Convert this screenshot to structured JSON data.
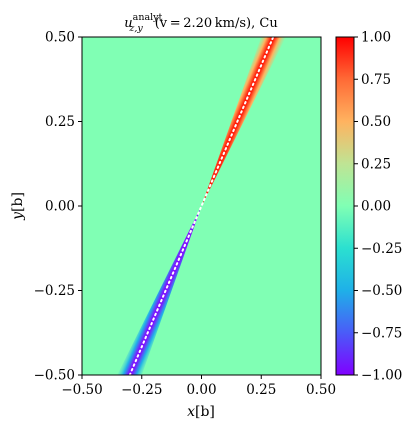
{
  "chart_data": {
    "type": "heatmap",
    "title_parts": {
      "main": "u",
      "subscript": "z,y",
      "superscript": "analyt",
      "rest": "(v = 2.20 km/s), Cu"
    },
    "xlabel_parts": {
      "var": "x",
      "unit": "[b]"
    },
    "ylabel_parts": {
      "var": "y",
      "unit": "[b]"
    },
    "xlim": [
      -0.5,
      0.5
    ],
    "ylim": [
      -0.5,
      0.5
    ],
    "x_ticks": [
      "−0.50",
      "−0.25",
      "0.00",
      "0.25",
      "0.50"
    ],
    "y_ticks": [
      "0.50",
      "0.25",
      "0.00",
      "−0.25",
      "−0.50"
    ],
    "colorbar": {
      "range": [
        -1.0,
        1.0
      ],
      "ticks": [
        "1.00",
        "0.75",
        "0.50",
        "0.25",
        "0.00",
        "−0.25",
        "−0.50",
        "−0.75",
        "−1.00"
      ],
      "colormap": "rainbow"
    },
    "background_value": 0.0,
    "features": [
      {
        "name": "positive-lobe",
        "value": 1.0,
        "from": [
          0.0,
          0.0
        ],
        "to": [
          0.3,
          0.5
        ]
      },
      {
        "name": "negative-lobe",
        "value": -1.0,
        "from": [
          0.0,
          0.0
        ],
        "to": [
          -0.3,
          -0.5
        ]
      }
    ],
    "reference_line": {
      "style": "dotted",
      "color": "#ffffff",
      "from": [
        -0.3,
        -0.5
      ],
      "to": [
        0.3,
        0.5
      ]
    }
  }
}
